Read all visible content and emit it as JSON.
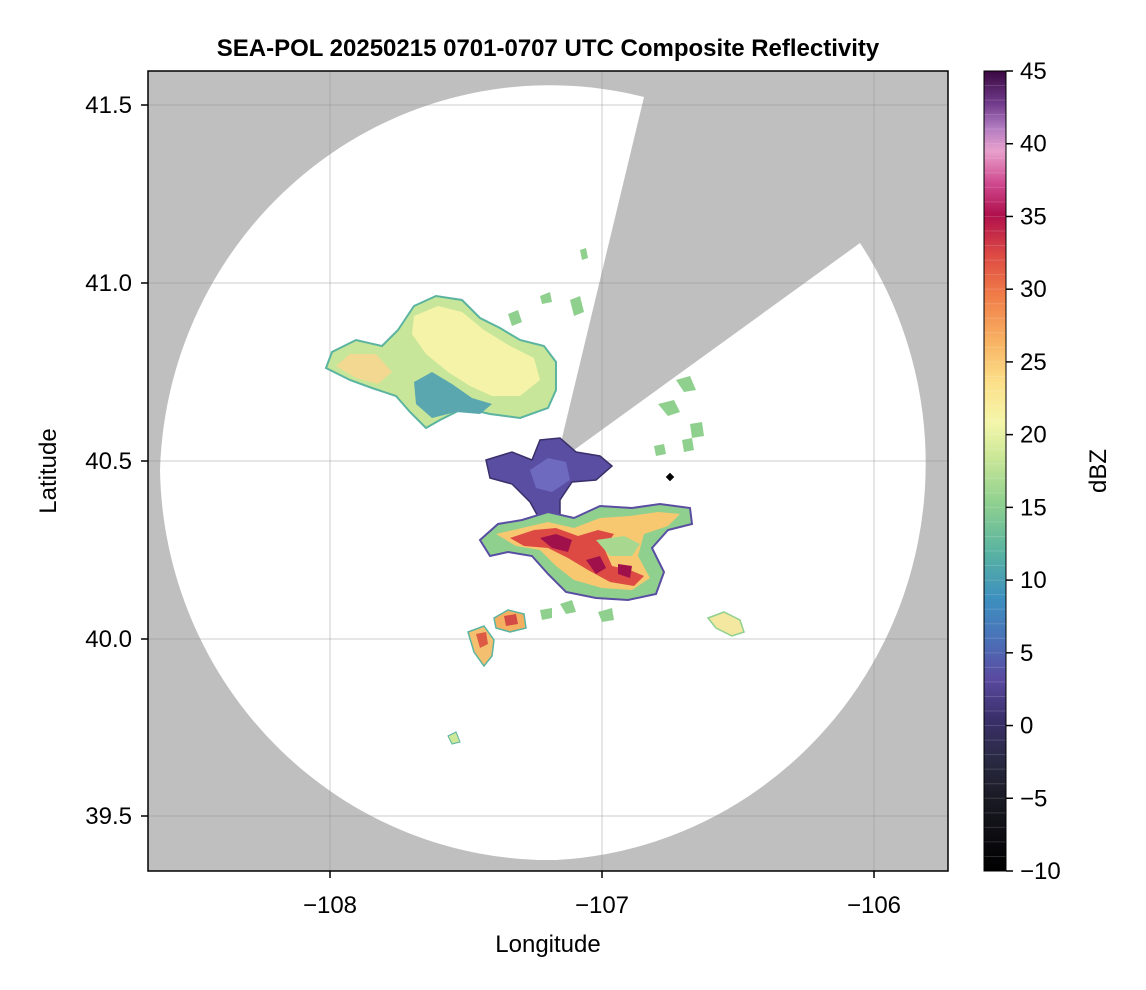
{
  "title": "SEA-POL 20250215 0701-0707 UTC Composite Reflectivity",
  "xlabel": "Longitude",
  "ylabel": "Latitude",
  "x_ticks": [
    "−108",
    "−107",
    "−106"
  ],
  "y_ticks": [
    "41.5",
    "41.0",
    "40.5",
    "40.0",
    "39.5"
  ],
  "colorbar": {
    "label": "dBZ",
    "ticks": [
      "45",
      "40",
      "35",
      "30",
      "25",
      "20",
      "15",
      "10",
      "5",
      "0",
      "−5",
      "−10"
    ]
  },
  "colors": {
    "outside_range": "#bfbfbf",
    "radar_coverage": "#ffffff",
    "grid": "#dddddd"
  },
  "chart_data": {
    "type": "heatmap",
    "title": "SEA-POL 20250215 0701-0707 UTC Composite Reflectivity",
    "xlabel": "Longitude",
    "ylabel": "Latitude",
    "xlim": [
      -108.67,
      -105.73
    ],
    "ylim": [
      39.35,
      41.6
    ],
    "x_ticks": [
      -108,
      -107,
      -106
    ],
    "y_ticks": [
      41.5,
      41.0,
      40.5,
      40.0,
      39.5
    ],
    "grid": true,
    "colorbar": {
      "label": "dBZ",
      "min": -10,
      "max": 45,
      "position": "right"
    },
    "radar_center": {
      "lon": -107.15,
      "lat": 40.48
    },
    "echo_regions": [
      {
        "lon": -107.72,
        "lat": 40.76,
        "dbz": 18
      },
      {
        "lon": -107.62,
        "lat": 40.66,
        "dbz": 8
      },
      {
        "lon": -107.05,
        "lat": 40.28,
        "dbz": 30
      },
      {
        "lon": -106.88,
        "lat": 40.18,
        "dbz": 28
      },
      {
        "lon": -107.16,
        "lat": 40.48,
        "dbz": 2
      },
      {
        "lon": -107.35,
        "lat": 40.05,
        "dbz": 26
      },
      {
        "lon": -107.45,
        "lat": 39.98,
        "dbz": 24
      },
      {
        "lon": -106.55,
        "lat": 40.05,
        "dbz": 18
      },
      {
        "lon": -107.55,
        "lat": 39.72,
        "dbz": 14
      }
    ]
  }
}
